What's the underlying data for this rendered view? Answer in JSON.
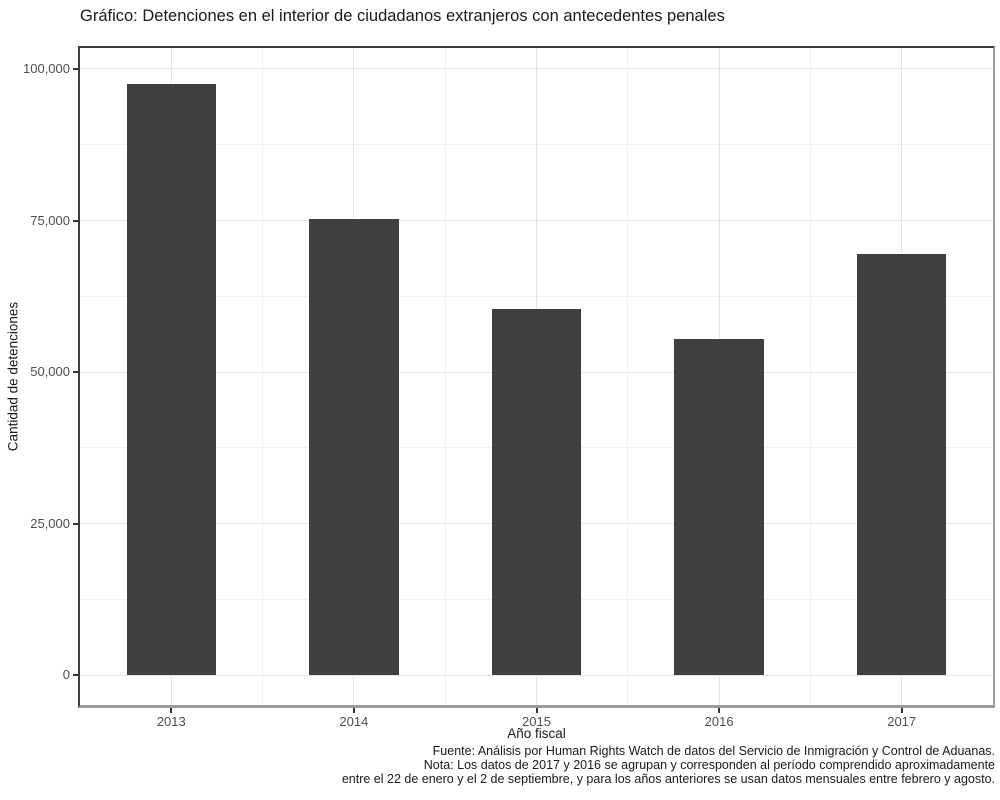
{
  "chart_data": {
    "type": "bar",
    "title": "Gráfico: Detenciones en el interior de ciudadanos extranjeros con antecedentes penales",
    "xlabel": "Año fiscal",
    "ylabel": "Cantidad de detenciones",
    "categories": [
      "2013",
      "2014",
      "2015",
      "2016",
      "2017"
    ],
    "values": [
      97600,
      75300,
      60500,
      55400,
      69500
    ],
    "ylim": [
      0,
      100000
    ],
    "yticks": [
      {
        "value": 0,
        "label": "0"
      },
      {
        "value": 25000,
        "label": "25,000"
      },
      {
        "value": 50000,
        "label": "50,000"
      },
      {
        "value": 75000,
        "label": "75,000"
      },
      {
        "value": 100000,
        "label": "100,000"
      }
    ],
    "minor_yticks": [
      12500,
      37500,
      62500,
      87500
    ],
    "grid": "on",
    "legend": "none",
    "caption_lines": [
      "Fuente: Análisis por Human Rights Watch de datos del Servicio de Inmigración y Control de Aduanas.",
      "Nota: Los datos de 2017 y 2016 se agrupan y corresponden al período comprendido aproximadamente",
      "entre el 22 de enero y el 2 de septiembre, y para los años anteriores se usan datos mensuales entre febrero y agosto."
    ],
    "colors": {
      "bar": "#404040",
      "grid_major": "#e4e4e4",
      "grid_minor": "#f0f0f0",
      "tick": "#333333",
      "tick_text": "#4d4d4d",
      "text": "#1a1a1a",
      "background": "#ffffff"
    },
    "render": {
      "value_range": [
        -4880,
        103460
      ],
      "bar_width_frac": 0.49
    }
  }
}
